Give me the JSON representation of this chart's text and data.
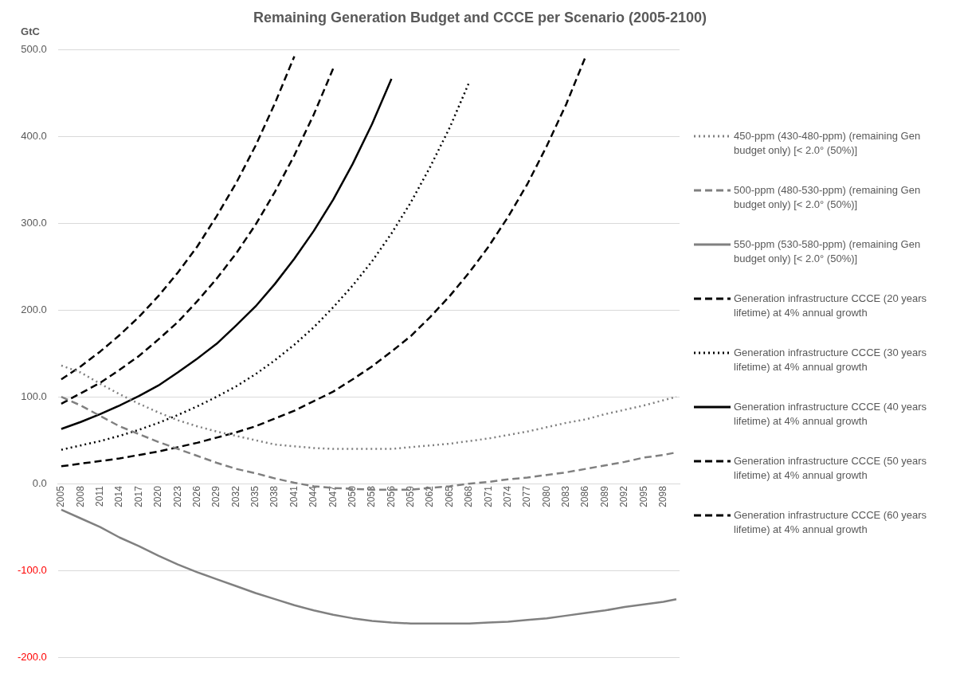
{
  "chart_data": {
    "type": "line",
    "title": "Remaining Generation Budget and CCCE per Scenario (2005-2100)",
    "ylabel": "GtC",
    "x": [
      2005,
      2008,
      2011,
      2014,
      2017,
      2020,
      2023,
      2026,
      2029,
      2032,
      2035,
      2038,
      2041,
      2044,
      2047,
      2050,
      2053,
      2056,
      2059,
      2062,
      2065,
      2068,
      2071,
      2074,
      2077,
      2080,
      2083,
      2086,
      2089,
      2092,
      2095,
      2098,
      2100
    ],
    "xlim": [
      2004.5,
      2100.5
    ],
    "xticks": [
      2005,
      2008,
      2011,
      2014,
      2017,
      2020,
      2023,
      2026,
      2029,
      2032,
      2035,
      2038,
      2041,
      2044,
      2047,
      2050,
      2053,
      2056,
      2059,
      2062,
      2065,
      2068,
      2071,
      2074,
      2077,
      2080,
      2083,
      2086,
      2089,
      2092,
      2095,
      2098
    ],
    "ylim": [
      -200,
      500
    ],
    "yticks": [
      {
        "value": -200,
        "label": "-200.0"
      },
      {
        "value": -100,
        "label": "-100.0"
      },
      {
        "value": 0,
        "label": "0.0"
      },
      {
        "value": 100,
        "label": "100.0"
      },
      {
        "value": 200,
        "label": "200.0"
      },
      {
        "value": 300,
        "label": "300.0"
      },
      {
        "value": 400,
        "label": "400.0"
      },
      {
        "value": 500,
        "label": "500.0"
      }
    ],
    "grid": "y",
    "legend": "right",
    "marker": "none",
    "series": [
      {
        "name": "450-ppm (430-480-ppm) (remaining Gen budget only) [< 2.0° (50%)]",
        "color": "#808080",
        "line_style": "dotted",
        "values": [
          136,
          128,
          115,
          103,
          92,
          82,
          73,
          66,
          60,
          55,
          50,
          45,
          43,
          41,
          40,
          40,
          40,
          40,
          42,
          44,
          46,
          49,
          52,
          56,
          60,
          65,
          70,
          74,
          80,
          85,
          90,
          96,
          100
        ]
      },
      {
        "name": "500-ppm (480-530-ppm) (remaining Gen budget only) [< 2.0° (50%)]",
        "color": "#808080",
        "line_style": "dashed",
        "values": [
          100,
          90,
          78,
          66,
          57,
          48,
          40,
          32,
          24,
          17,
          12,
          6,
          1,
          -3,
          -5,
          -6,
          -7,
          -7,
          -7,
          -5,
          -3,
          0,
          2,
          5,
          7,
          10,
          13,
          17,
          21,
          25,
          30,
          33,
          36
        ]
      },
      {
        "name": "550-ppm (530-580-ppm) (remaining Gen budget only) [< 2.0° (50%)]",
        "color": "#808080",
        "line_style": "solid",
        "values": [
          -30,
          -40,
          -50,
          -62,
          -72,
          -83,
          -93,
          -102,
          -110,
          -118,
          -126,
          -133,
          -140,
          -146,
          -151,
          -155,
          -158,
          -160,
          -161,
          -161,
          -161,
          -161,
          -160,
          -159,
          -157,
          -155,
          -152,
          -149,
          -146,
          -142,
          -139,
          -136,
          -133
        ]
      },
      {
        "name": "Generation infrastructure CCCE (20 years lifetime)  at 4% annual growth",
        "color": "#000000",
        "line_style": "dashed",
        "values": [
          20,
          23,
          26,
          29,
          33,
          37,
          42,
          47,
          53,
          59,
          66,
          75,
          84,
          95,
          106,
          120,
          135,
          152,
          170,
          192,
          216,
          243,
          273,
          307,
          345,
          389,
          437,
          492,
          null,
          null,
          null,
          null,
          null
        ]
      },
      {
        "name": "Generation infrastructure CCCE (30 years lifetime)  at 4% annual growth",
        "color": "#000000",
        "line_style": "dotted",
        "values": [
          39,
          44,
          49,
          55,
          62,
          70,
          79,
          89,
          100,
          112,
          126,
          142,
          160,
          180,
          203,
          228,
          256,
          288,
          324,
          365,
          410,
          462,
          null,
          null,
          null,
          null,
          null,
          null,
          null,
          null,
          null,
          null,
          null
        ]
      },
      {
        "name": "Generation infrastructure CCCE (40 years lifetime)  at 4% annual growth",
        "color": "#000000",
        "line_style": "solid",
        "values": [
          63,
          71,
          80,
          90,
          101,
          113,
          128,
          144,
          161,
          182,
          204,
          230,
          259,
          291,
          327,
          368,
          414,
          466,
          null,
          null,
          null,
          null,
          null,
          null,
          null,
          null,
          null,
          null,
          null,
          null,
          null,
          null,
          null
        ]
      },
      {
        "name": "Generation infrastructure CCCE (50 years lifetime)  at 4% annual growth",
        "color": "#000000",
        "line_style": "dashed",
        "values": [
          92,
          104,
          116,
          131,
          147,
          166,
          186,
          210,
          236,
          265,
          298,
          336,
          378,
          425,
          478,
          null,
          null,
          null,
          null,
          null,
          null,
          null,
          null,
          null,
          null,
          null,
          null,
          null,
          null,
          null,
          null,
          null,
          null
        ]
      },
      {
        "name": "Generation infrastructure CCCE (60 years lifetime)  at 4% annual growth",
        "color": "#000000",
        "line_style": "dashed",
        "values": [
          120,
          135,
          152,
          171,
          192,
          216,
          243,
          273,
          308,
          346,
          389,
          438,
          492,
          null,
          null,
          null,
          null,
          null,
          null,
          null,
          null,
          null,
          null,
          null,
          null,
          null,
          null,
          null,
          null,
          null,
          null,
          null,
          null
        ]
      }
    ]
  }
}
